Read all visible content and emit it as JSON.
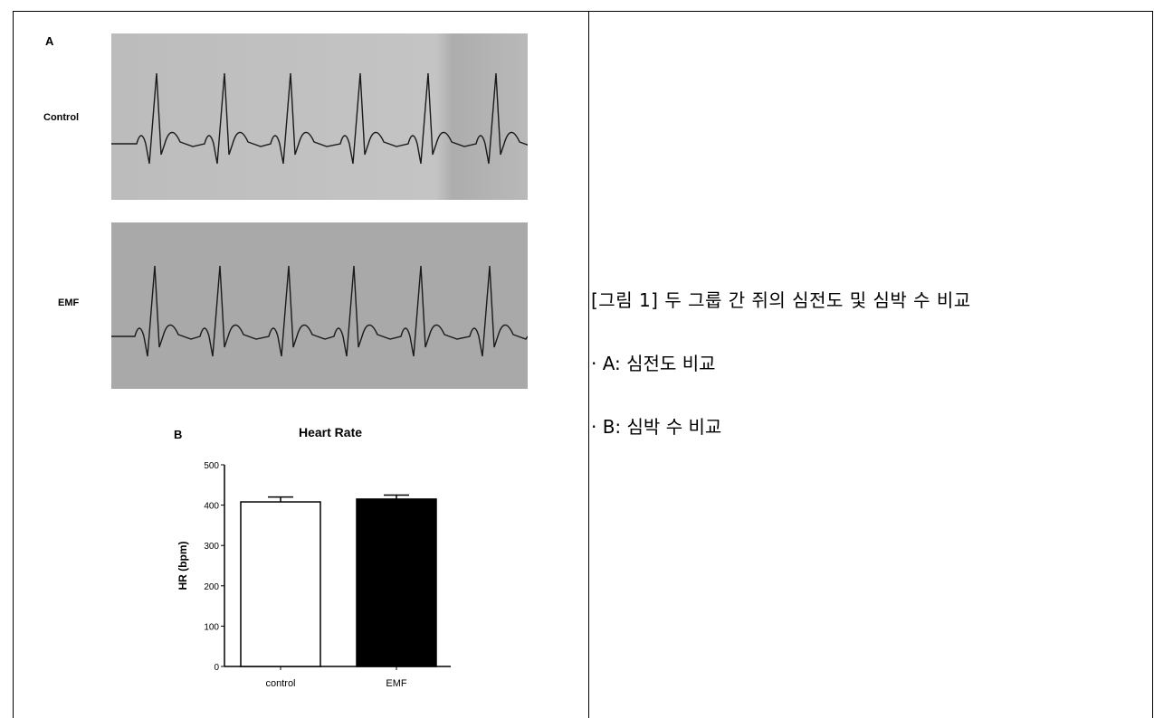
{
  "figure": {
    "panel_a": {
      "letter": "A",
      "traces": [
        {
          "label": "Control"
        },
        {
          "label": "EMF"
        }
      ]
    },
    "panel_b": {
      "letter": "B"
    },
    "caption": {
      "title": "[그림 1] 두 그룹 간 쥐의 심전도 및 심박 수 비교",
      "items": [
        "· A: 심전도 비교",
        "· B: 심박 수 비교"
      ]
    }
  },
  "chart_data": {
    "type": "bar",
    "title": "Heart Rate",
    "xlabel": "",
    "ylabel": "HR (bpm)",
    "categories": [
      "control",
      "EMF"
    ],
    "values": [
      408,
      415
    ],
    "errors": [
      12,
      10
    ],
    "bar_fills": [
      "#ffffff",
      "#000000"
    ],
    "ylim": [
      0,
      500
    ],
    "yticks": [
      0,
      100,
      200,
      300,
      400,
      500
    ],
    "grid": false
  }
}
